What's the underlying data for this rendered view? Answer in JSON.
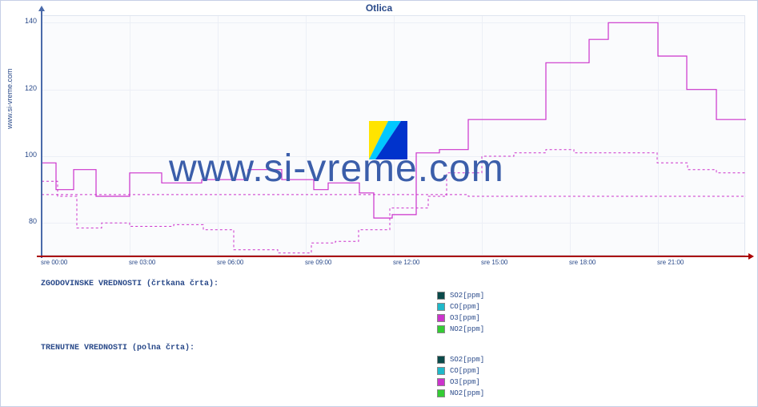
{
  "title": "Otlica",
  "ylabel": "www.si-vreme.com",
  "watermark": "www.si-vreme.com",
  "chart": {
    "type": "line",
    "background_color": "#fafbfd",
    "grid_color": "#eceff6",
    "axis_y_color": "#4a6aaa",
    "axis_x_color": "#aa0000",
    "ylim": [
      70,
      142
    ],
    "ytick_values": [
      80,
      100,
      120,
      140
    ],
    "xticks": [
      "sre 00:00",
      "sre 03:00",
      "sre 06:00",
      "sre 09:00",
      "sre 12:00",
      "sre 15:00",
      "sre 18:00",
      "sre 21:00"
    ],
    "xtick_positions": [
      0,
      110,
      220,
      330,
      440,
      550,
      660,
      770
    ],
    "series": {
      "o3_solid": {
        "color": "#cc33cc",
        "dash": "none",
        "width": 1.2,
        "points": [
          [
            0,
            98
          ],
          [
            18,
            98
          ],
          [
            18,
            90
          ],
          [
            40,
            90
          ],
          [
            40,
            96
          ],
          [
            68,
            96
          ],
          [
            68,
            88
          ],
          [
            110,
            88
          ],
          [
            110,
            95
          ],
          [
            150,
            95
          ],
          [
            150,
            92
          ],
          [
            200,
            92
          ],
          [
            200,
            93
          ],
          [
            258,
            93
          ],
          [
            258,
            96
          ],
          [
            300,
            96
          ],
          [
            300,
            93
          ],
          [
            340,
            93
          ],
          [
            340,
            90
          ],
          [
            358,
            90
          ],
          [
            358,
            92
          ],
          [
            397,
            92
          ],
          [
            397,
            89
          ],
          [
            415,
            89
          ],
          [
            415,
            81.5
          ],
          [
            438,
            81.5
          ],
          [
            438,
            82.5
          ],
          [
            468,
            82.5
          ],
          [
            468,
            101
          ],
          [
            497,
            101
          ],
          [
            497,
            102
          ],
          [
            533,
            102
          ],
          [
            533,
            111
          ],
          [
            630,
            111
          ],
          [
            630,
            128
          ],
          [
            684,
            128
          ],
          [
            684,
            135
          ],
          [
            708,
            135
          ],
          [
            708,
            140
          ],
          [
            770,
            140
          ],
          [
            770,
            130
          ],
          [
            806,
            130
          ],
          [
            806,
            120
          ],
          [
            843,
            120
          ],
          [
            843,
            111
          ],
          [
            880,
            111
          ]
        ]
      },
      "o3_dashed": {
        "color": "#cc33cc",
        "dash": "3,3",
        "width": 1,
        "points": [
          [
            0,
            92.5
          ],
          [
            20,
            92.5
          ],
          [
            20,
            88
          ],
          [
            44,
            88
          ],
          [
            44,
            78.5
          ],
          [
            75,
            78.5
          ],
          [
            75,
            80
          ],
          [
            110,
            80
          ],
          [
            110,
            79
          ],
          [
            165,
            79
          ],
          [
            165,
            79.5
          ],
          [
            202,
            79.5
          ],
          [
            202,
            78
          ],
          [
            240,
            78
          ],
          [
            240,
            72
          ],
          [
            295,
            72
          ],
          [
            295,
            71
          ],
          [
            337,
            71
          ],
          [
            337,
            74
          ],
          [
            367,
            74
          ],
          [
            367,
            74.5
          ],
          [
            396,
            74.5
          ],
          [
            396,
            78
          ],
          [
            435,
            78
          ],
          [
            435,
            84.5
          ],
          [
            483,
            84.5
          ],
          [
            483,
            88
          ],
          [
            506,
            88
          ],
          [
            506,
            95
          ],
          [
            550,
            95
          ],
          [
            550,
            100
          ],
          [
            590,
            100
          ],
          [
            590,
            101
          ],
          [
            630,
            101
          ],
          [
            630,
            102
          ],
          [
            665,
            102
          ],
          [
            665,
            101
          ],
          [
            769,
            101
          ],
          [
            769,
            98
          ],
          [
            807,
            98
          ],
          [
            807,
            96
          ],
          [
            843,
            96
          ],
          [
            843,
            95
          ],
          [
            880,
            95
          ]
        ]
      },
      "o3_dashed2": {
        "color": "#cc33cc",
        "dash": "3,3",
        "width": 1,
        "points": [
          [
            0,
            88.5
          ],
          [
            533,
            88.5
          ],
          [
            533,
            88
          ],
          [
            880,
            88
          ]
        ]
      }
    }
  },
  "legend": {
    "historic_heading": "ZGODOVINSKE VREDNOSTI (črtkana črta):",
    "current_heading": "TRENUTNE VREDNOSTI (polna črta):",
    "items": [
      {
        "label": "SO2[ppm]",
        "color": "#0a4a4a"
      },
      {
        "label": "CO[ppm]",
        "color": "#1fb8c9"
      },
      {
        "label": "O3[ppm]",
        "color": "#cc33cc"
      },
      {
        "label": "NO2[ppm]",
        "color": "#33cc33"
      }
    ]
  },
  "watermark_logo_colors": [
    "#ffe400",
    "#00c8ff",
    "#0033cc"
  ]
}
